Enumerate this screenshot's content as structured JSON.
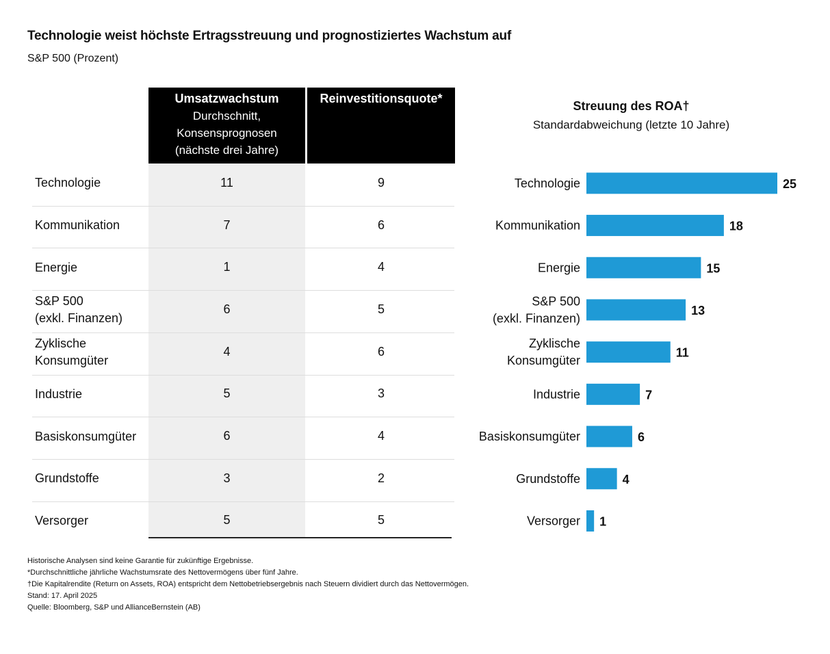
{
  "title": "Technologie weist höchste Ertragsstreuung und prognostiziertes Wachstum auf",
  "subtitle": "S&P 500 (Prozent)",
  "table": {
    "header1_bold": "Umsatzwachstum",
    "header1_lines": [
      "Durchschnitt,",
      "Konsensprognosen",
      "(nächste drei Jahre)"
    ],
    "header2": "Reinvestitionsquote*",
    "rows": [
      {
        "label": [
          "Technologie"
        ],
        "umsatz": "11",
        "reinvest": "9"
      },
      {
        "label": [
          "Kommunikation"
        ],
        "umsatz": "7",
        "reinvest": "6"
      },
      {
        "label": [
          "Energie"
        ],
        "umsatz": "1",
        "reinvest": "4"
      },
      {
        "label": [
          "S&P 500",
          "(exkl. Finanzen)"
        ],
        "umsatz": "6",
        "reinvest": "5"
      },
      {
        "label": [
          "Zyklische",
          "Konsumgüter"
        ],
        "umsatz": "4",
        "reinvest": "6"
      },
      {
        "label": [
          "Industrie"
        ],
        "umsatz": "5",
        "reinvest": "3"
      },
      {
        "label": [
          "Basiskonsumgüter"
        ],
        "umsatz": "6",
        "reinvest": "4"
      },
      {
        "label": [
          "Grundstoffe"
        ],
        "umsatz": "3",
        "reinvest": "2"
      },
      {
        "label": [
          "Versorger"
        ],
        "umsatz": "5",
        "reinvest": "5"
      }
    ]
  },
  "chart_data": {
    "type": "bar",
    "orientation": "horizontal",
    "title": "Streuung des ROA†",
    "subtitle": "Standardabweichung (letzte 10 Jahre)",
    "categories": [
      [
        "Technologie"
      ],
      [
        "Kommunikation"
      ],
      [
        "Energie"
      ],
      [
        "S&P 500",
        "(exkl. Finanzen)"
      ],
      [
        "Zyklische",
        "Konsumgüter"
      ],
      [
        "Industrie"
      ],
      [
        "Basiskonsumgüter"
      ],
      [
        "Grundstoffe"
      ],
      [
        "Versorger"
      ]
    ],
    "values": [
      25,
      18,
      15,
      13,
      11,
      7,
      6,
      4,
      1
    ],
    "xlim": [
      0,
      25
    ],
    "bar_color": "#1f9ad6",
    "grid": false
  },
  "notes": [
    "Historische Analysen sind keine Garantie für zukünftige Ergebnisse.",
    "*Durchschnittliche jährliche Wachstumsrate des Nettovermögens über fünf Jahre.",
    "†Die Kapitalrendite (Return on Assets, ROA) entspricht dem Nettobetriebsergebnis nach Steuern dividiert durch das Nettovermögen.",
    "Stand: 17. April 2025",
    "Quelle: Bloomberg, S&P und AllianceBernstein (AB)"
  ]
}
